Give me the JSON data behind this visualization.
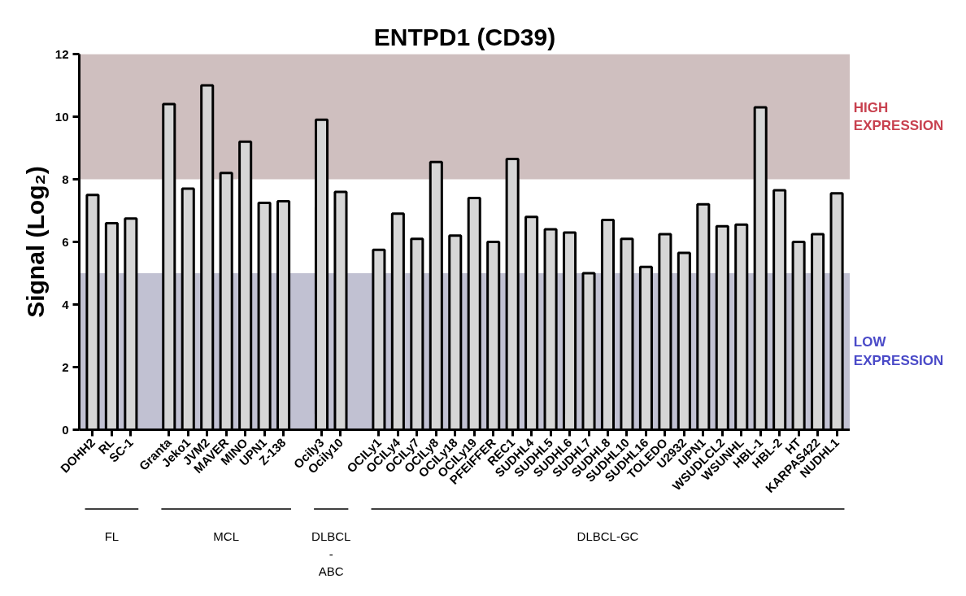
{
  "chart_data": {
    "type": "bar",
    "title": "ENTPD1 (CD39)",
    "ylabel": "Signal (Log₂)",
    "categories": [
      "DOHH2",
      "RL",
      "SC-1",
      null,
      "Granta",
      "Jeko1",
      "JVM2",
      "MAVER",
      "MINO",
      "UPN1",
      "Z-138",
      null,
      "Ocily3",
      "Ocily10",
      null,
      "OCILy1",
      "OCILy4",
      "OCILy7",
      "OCILy8",
      "OCILy18",
      "OCILy19",
      "PFEIFFER",
      "REC1",
      "SUDHL4",
      "SUDHL5",
      "SUDHL6",
      "SUDHL7",
      "SUDHL8",
      "SUDHL10",
      "SUDHL16",
      "TOLEDO",
      "U2932",
      "UPN1",
      "WSUDLCL2",
      "WSUNHL",
      "HBL-1",
      "HBL-2",
      "HT",
      "KARPAS422",
      "NUDHL1"
    ],
    "values": [
      7.5,
      6.6,
      6.75,
      null,
      10.4,
      7.7,
      11.0,
      8.2,
      9.2,
      7.25,
      7.3,
      null,
      9.9,
      7.6,
      null,
      5.75,
      6.9,
      6.1,
      8.55,
      6.2,
      7.4,
      6.0,
      8.65,
      6.8,
      6.4,
      6.3,
      5.0,
      6.7,
      6.1,
      5.2,
      6.25,
      5.65,
      7.2,
      6.5,
      6.55,
      10.3,
      7.65,
      6.0,
      6.25,
      7.55
    ],
    "color": "#d6d6d6",
    "ylim": [
      0,
      12
    ],
    "yticks": [
      0,
      2,
      4,
      6,
      8,
      10,
      12
    ],
    "bands": [
      {
        "axis": "y",
        "from": 8,
        "to": 12,
        "label": "HIGH\nEXPRESSION",
        "color": "#cfbfbf"
      },
      {
        "axis": "y",
        "from": 0,
        "to": 5,
        "label": "LOW\nEXPRESSION",
        "color": "#c1c1d2"
      }
    ],
    "annotations": [
      "FL",
      "MCL",
      "DLBCL\n-\nABC",
      "DLBCL-GC"
    ]
  }
}
